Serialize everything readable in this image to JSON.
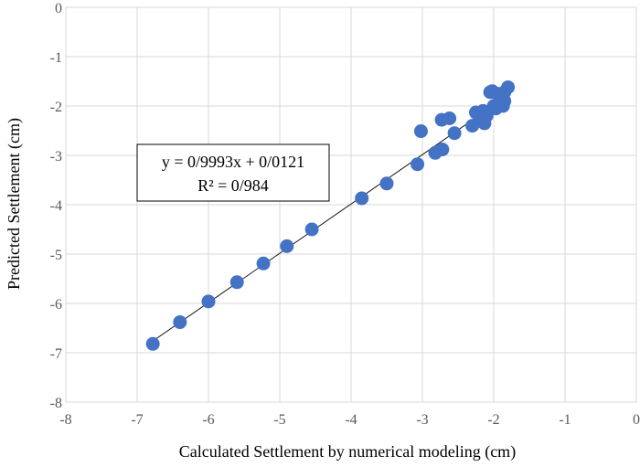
{
  "chart_data": {
    "type": "scatter",
    "title": "",
    "xlabel": "Calculated Settlement by numerical modeling (cm)",
    "ylabel": "Predicted Settlement (cm)",
    "xlim": [
      -8,
      0
    ],
    "ylim": [
      -8,
      0
    ],
    "x_ticks": [
      "-8",
      "-7",
      "-6",
      "-5",
      "-4",
      "-3",
      "-2",
      "-1",
      "0"
    ],
    "y_ticks": [
      "0",
      "-1",
      "-2",
      "-3",
      "-4",
      "-5",
      "-6",
      "-7",
      "-8"
    ],
    "grid": true,
    "legend": "none",
    "marker_color": "#4472C4",
    "series": [
      {
        "x": [
          -6.78,
          -6.4,
          -6.0,
          -5.6,
          -5.23,
          -4.9,
          -4.55,
          -3.85,
          -3.5,
          -3.07,
          -3.02,
          -2.82,
          -2.72,
          -2.73,
          -2.62,
          -2.55,
          -2.3,
          -2.25,
          -2.2,
          -2.15,
          -2.13,
          -2.1,
          -2.05,
          -2.02,
          -2.0,
          -1.97,
          -1.95,
          -1.9,
          -1.87,
          -1.85,
          -1.85,
          -1.8
        ],
        "y": [
          -6.82,
          -6.38,
          -5.96,
          -5.57,
          -5.19,
          -4.84,
          -4.5,
          -3.87,
          -3.57,
          -3.18,
          -2.51,
          -2.95,
          -2.88,
          -2.28,
          -2.25,
          -2.55,
          -2.4,
          -2.13,
          -2.3,
          -2.1,
          -2.35,
          -2.2,
          -1.72,
          -1.7,
          -2.0,
          -2.05,
          -1.75,
          -1.85,
          -2.0,
          -1.9,
          -1.72,
          -1.62
        ]
      }
    ],
    "trendline": {
      "x_range": [
        -6.8,
        -1.8
      ],
      "slope": 0.9993,
      "intercept": 0.0121,
      "color": "#000000"
    },
    "annotation": {
      "equation": "y = 0/9993x + 0/0121",
      "r_squared": "R² = 0/984"
    }
  }
}
